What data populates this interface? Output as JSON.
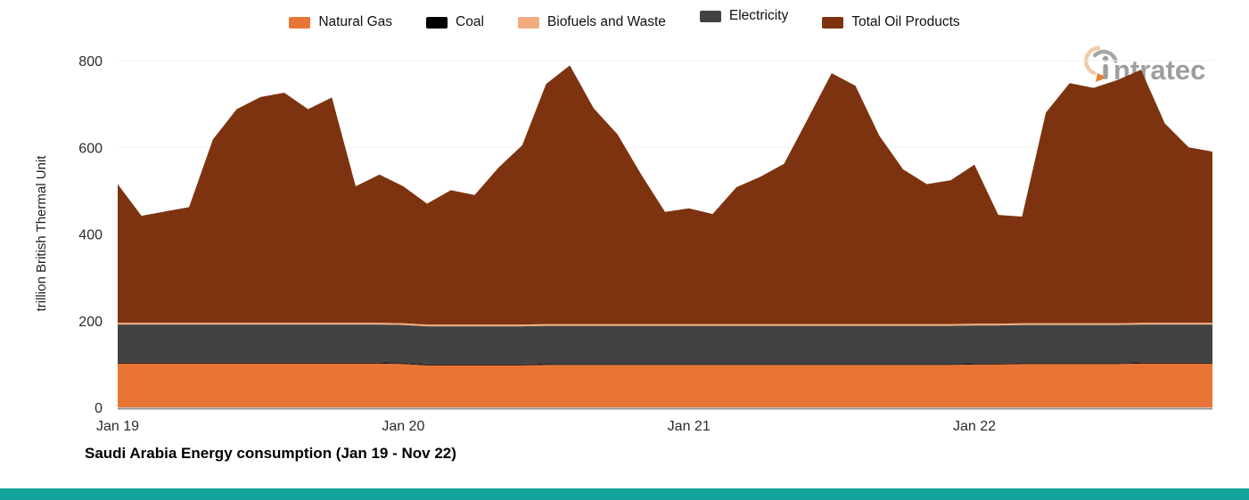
{
  "page": {
    "logo_text": "ntratec",
    "footer_bar_color": "#13A39C"
  },
  "chart_data": {
    "type": "area",
    "stacked": true,
    "title": "Saudi Arabia Energy consumption (Jan 19 - Nov 22)",
    "ylabel": "trillion British Thermal Unit",
    "xlabel": "",
    "ylim": [
      0,
      800
    ],
    "yticks": [
      0,
      200,
      400,
      600,
      800
    ],
    "grid": "faint horizontal gridlines at yticks",
    "legend_position": "top-center",
    "xticks": [
      {
        "label": "Jan 19",
        "month_index": 0
      },
      {
        "label": "Jan 20",
        "month_index": 12
      },
      {
        "label": "Jan 21",
        "month_index": 24
      },
      {
        "label": "Jan 22",
        "month_index": 36
      }
    ],
    "x": [
      "Jan 19",
      "Feb 19",
      "Mar 19",
      "Apr 19",
      "May 19",
      "Jun 19",
      "Jul 19",
      "Aug 19",
      "Sep 19",
      "Oct 19",
      "Nov 19",
      "Dec 19",
      "Jan 20",
      "Feb 20",
      "Mar 20",
      "Apr 20",
      "May 20",
      "Jun 20",
      "Jul 20",
      "Aug 20",
      "Sep 20",
      "Oct 20",
      "Nov 20",
      "Dec 20",
      "Jan 21",
      "Feb 21",
      "Mar 21",
      "Apr 21",
      "May 21",
      "Jun 21",
      "Jul 21",
      "Aug 21",
      "Sep 21",
      "Oct 21",
      "Nov 21",
      "Dec 21",
      "Jan 22",
      "Feb 22",
      "Mar 22",
      "Apr 22",
      "May 22",
      "Jun 22",
      "Jul 22",
      "Aug 22",
      "Sep 22",
      "Oct 22",
      "Nov 22"
    ],
    "series": [
      {
        "name": "Natural Gas",
        "color": "#E87535",
        "values": [
          101,
          101,
          101,
          101,
          101,
          101,
          101,
          101,
          101,
          101,
          101,
          101,
          100,
          97,
          97,
          97,
          97,
          97,
          98,
          98,
          98,
          98,
          98,
          98,
          98,
          98,
          98,
          98,
          98,
          98,
          98,
          98,
          98,
          98,
          98,
          98,
          99,
          99,
          100,
          100,
          100,
          100,
          100,
          101,
          101,
          101,
          101
        ]
      },
      {
        "name": "Coal",
        "color": "#000000",
        "values": [
          2,
          2,
          2,
          2,
          2,
          2,
          2,
          2,
          2,
          2,
          2,
          2,
          2,
          2,
          2,
          2,
          2,
          2,
          2,
          2,
          2,
          2,
          2,
          2,
          2,
          2,
          2,
          2,
          2,
          2,
          2,
          2,
          2,
          2,
          2,
          2,
          2,
          2,
          2,
          2,
          2,
          2,
          2,
          2,
          2,
          2,
          2
        ]
      },
      {
        "name": "Biofuels and Waste",
        "color": "#F1AC7E",
        "values": [
          4,
          4,
          4,
          4,
          4,
          4,
          4,
          4,
          4,
          4,
          4,
          4,
          4,
          4,
          4,
          4,
          4,
          4,
          4,
          4,
          4,
          4,
          4,
          4,
          4,
          4,
          4,
          4,
          4,
          4,
          4,
          4,
          4,
          4,
          4,
          4,
          4,
          4,
          4,
          4,
          4,
          4,
          4,
          4,
          4,
          4,
          4
        ]
      },
      {
        "name": "Electricity",
        "color": "#424242",
        "values": [
          88,
          88,
          88,
          88,
          88,
          88,
          88,
          88,
          88,
          88,
          88,
          88,
          88,
          88,
          88,
          88,
          88,
          88,
          88,
          88,
          88,
          88,
          88,
          88,
          88,
          88,
          88,
          88,
          88,
          88,
          88,
          88,
          88,
          88,
          88,
          88,
          88,
          88,
          88,
          88,
          88,
          88,
          88,
          88,
          88,
          88,
          88
        ]
      },
      {
        "name": "Total Oil Products",
        "color": "#7E3310",
        "values": [
          320,
          247,
          257,
          267,
          423,
          493,
          521,
          531,
          493,
          520,
          315,
          342,
          316,
          279,
          310,
          299,
          362,
          414,
          554,
          597,
          498,
          438,
          345,
          259,
          267,
          254,
          316,
          340,
          370,
          474,
          579,
          550,
          435,
          357,
          323,
          332,
          367,
          251,
          246,
          486,
          554,
          543,
          561,
          584,
          460,
          405,
          395
        ]
      }
    ],
    "stack_order": [
      0,
      1,
      3,
      2,
      4
    ],
    "stack_top_total": [
      515,
      442,
      452,
      462,
      618,
      688,
      716,
      726,
      688,
      715,
      510,
      537,
      510,
      470,
      501,
      490,
      553,
      605,
      746,
      789,
      690,
      630,
      537,
      451,
      459,
      446,
      508,
      532,
      562,
      666,
      771,
      742,
      627,
      549,
      515,
      524,
      560,
      444,
      440,
      680,
      748,
      737,
      755,
      779,
      655,
      600,
      590
    ]
  }
}
